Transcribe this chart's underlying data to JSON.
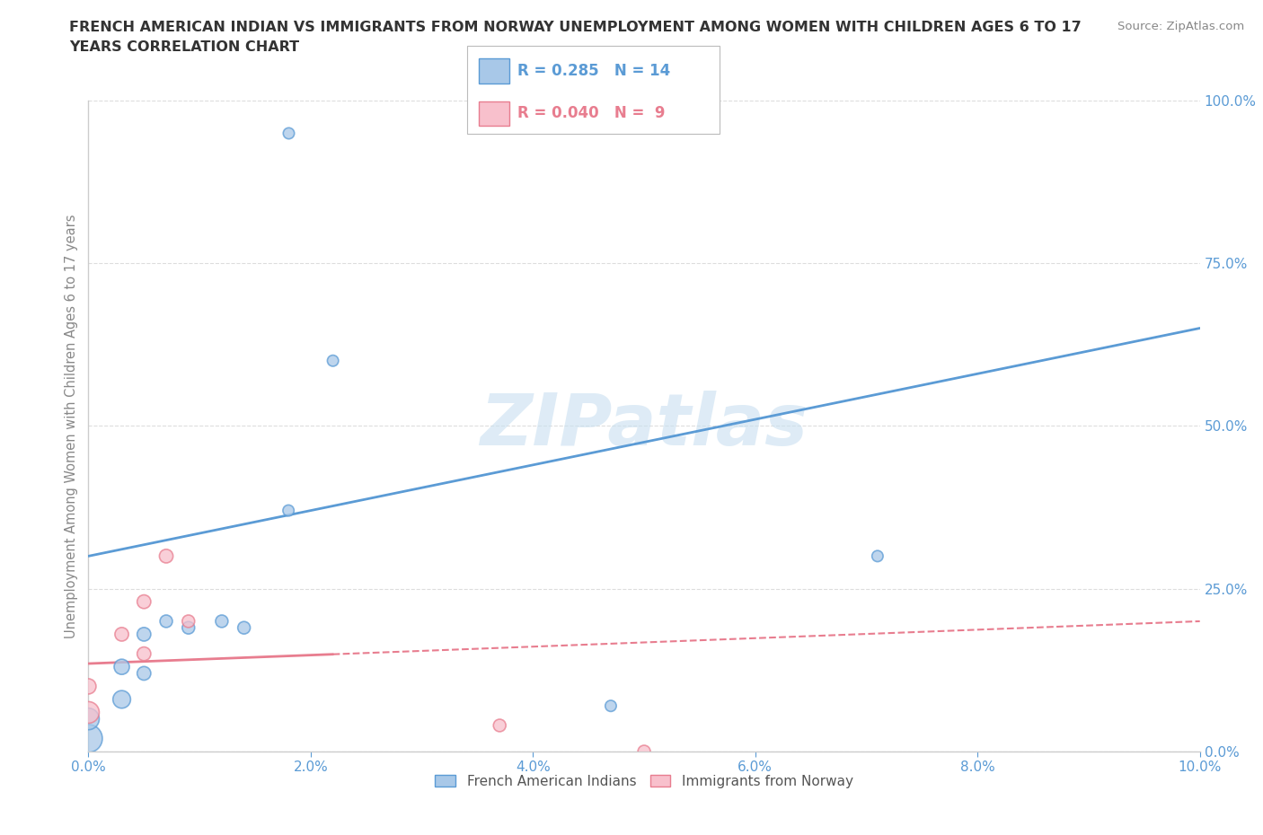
{
  "title_line1": "FRENCH AMERICAN INDIAN VS IMMIGRANTS FROM NORWAY UNEMPLOYMENT AMONG WOMEN WITH CHILDREN AGES 6 TO 17",
  "title_line2": "YEARS CORRELATION CHART",
  "source": "Source: ZipAtlas.com",
  "ylabel": "Unemployment Among Women with Children Ages 6 to 17 years",
  "xlim": [
    0.0,
    0.1
  ],
  "ylim": [
    0.0,
    1.0
  ],
  "xticks": [
    0.0,
    0.02,
    0.04,
    0.06,
    0.08,
    0.1
  ],
  "xtick_labels": [
    "0.0%",
    "2.0%",
    "4.0%",
    "6.0%",
    "8.0%",
    "10.0%"
  ],
  "ytick_labels": [
    "0.0%",
    "25.0%",
    "50.0%",
    "75.0%",
    "100.0%"
  ],
  "yticks": [
    0.0,
    0.25,
    0.5,
    0.75,
    1.0
  ],
  "blue_scatter_x": [
    0.0,
    0.0,
    0.003,
    0.003,
    0.005,
    0.005,
    0.007,
    0.009,
    0.012,
    0.014,
    0.018,
    0.022,
    0.071,
    0.047
  ],
  "blue_scatter_y": [
    0.02,
    0.05,
    0.08,
    0.13,
    0.18,
    0.12,
    0.2,
    0.19,
    0.2,
    0.19,
    0.37,
    0.6,
    0.3,
    0.07
  ],
  "blue_scatter_size": [
    500,
    300,
    200,
    150,
    120,
    120,
    100,
    100,
    100,
    100,
    80,
    80,
    80,
    80
  ],
  "pink_scatter_x": [
    0.0,
    0.0,
    0.003,
    0.005,
    0.005,
    0.007,
    0.009,
    0.037,
    0.05
  ],
  "pink_scatter_y": [
    0.06,
    0.1,
    0.18,
    0.15,
    0.23,
    0.3,
    0.2,
    0.04,
    0.0
  ],
  "pink_scatter_size": [
    300,
    150,
    120,
    120,
    120,
    120,
    100,
    100,
    100
  ],
  "blue_top_x": [
    0.018
  ],
  "blue_top_y": [
    0.95
  ],
  "blue_top_size": [
    80
  ],
  "blue_R": 0.285,
  "blue_N": 14,
  "pink_R": 0.04,
  "pink_N": 9,
  "blue_line_x0": 0.0,
  "blue_line_y0": 0.3,
  "blue_line_x1": 0.1,
  "blue_line_y1": 0.65,
  "pink_line_x0": 0.0,
  "pink_line_y0": 0.135,
  "pink_line_x1": 0.1,
  "pink_line_y1": 0.2,
  "blue_line_color": "#5b9bd5",
  "pink_line_color": "#e87d8f",
  "blue_dot_color": "#a8c8e8",
  "pink_dot_color": "#f8c0cc",
  "blue_dot_edge": "#5b9bd5",
  "pink_dot_edge": "#e87d8f",
  "watermark": "ZIPatlas",
  "watermark_color": "#c8dff0",
  "title_color": "#333333",
  "axis_label_color": "#888888",
  "tick_color": "#5b9bd5",
  "source_color": "#888888",
  "grid_color": "#dddddd",
  "legend_blue_color": "#5b9bd5",
  "legend_pink_color": "#e87d8f"
}
